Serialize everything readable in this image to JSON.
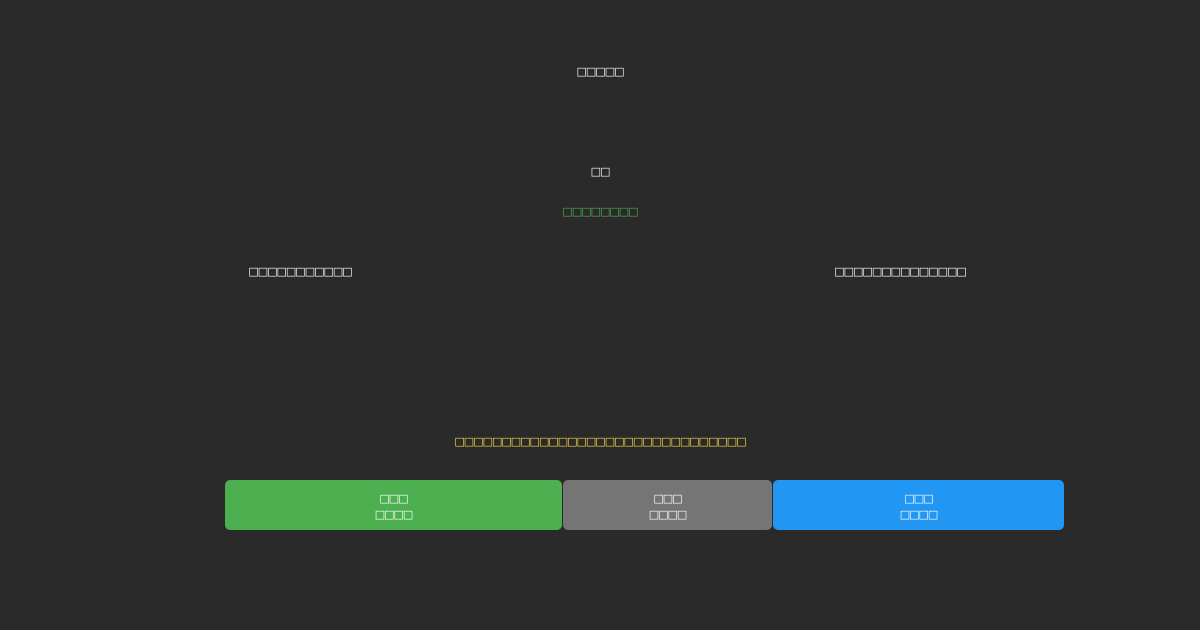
{
  "header": {
    "title": "□□□□□"
  },
  "status": {
    "label": "□□",
    "value": "□□□□□□□□"
  },
  "info": {
    "left": "□□□□□□□□□□□",
    "right": "□□□□□□□□□□□□□□"
  },
  "notice": "□□□□□□□□□□□□□□□□□□□□□□□□□□□□□□□",
  "buttons": [
    {
      "label": "□□□",
      "sublabel": "□□□□"
    },
    {
      "label": "□□□",
      "sublabel": "□□□□"
    },
    {
      "label": "□□□",
      "sublabel": "□□□□"
    }
  ]
}
